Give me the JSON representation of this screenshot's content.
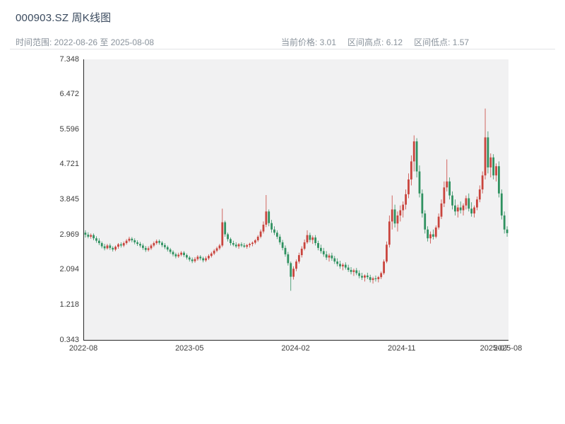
{
  "header": {
    "title": "000903.SZ 周K线图",
    "time_range": "时间范围: 2022-08-26 至 2025-08-08",
    "current_price_label": "当前价格: 3.01",
    "range_high_label": "区间高点: 6.12",
    "range_low_label": "区间低点: 1.57"
  },
  "chart_data": {
    "type": "candlestick",
    "title": "000903.SZ 周K线图",
    "interval": "weekly",
    "start_date": "2022-08-26",
    "end_date": "2025-08-08",
    "current_price": 3.01,
    "range_high": 6.12,
    "range_low": 1.57,
    "up_color": "#c9443d",
    "down_color": "#2f9160",
    "plot_bg": "#f1f1f2",
    "ylim": [
      0.343,
      7.348
    ],
    "yticks": [
      7.348,
      6.472,
      5.596,
      4.721,
      3.845,
      2.969,
      2.094,
      1.218,
      0.343
    ],
    "xticks": [
      {
        "label": "2022-08",
        "pos": 0.0
      },
      {
        "label": "2023-05",
        "pos": 0.25
      },
      {
        "label": "2024-02",
        "pos": 0.5
      },
      {
        "label": "2024-11",
        "pos": 0.75
      },
      {
        "label": "2025-07",
        "pos": 0.968
      },
      {
        "label": "2025-08",
        "pos": 1.0
      }
    ],
    "ohlc": [
      [
        3.02,
        3.08,
        2.9,
        2.97
      ],
      [
        2.97,
        3.03,
        2.88,
        2.92
      ],
      [
        2.92,
        3.0,
        2.87,
        2.96
      ],
      [
        2.96,
        3.0,
        2.83,
        2.88
      ],
      [
        2.88,
        2.93,
        2.77,
        2.82
      ],
      [
        2.82,
        2.88,
        2.71,
        2.76
      ],
      [
        2.76,
        2.8,
        2.63,
        2.68
      ],
      [
        2.68,
        2.74,
        2.58,
        2.63
      ],
      [
        2.63,
        2.74,
        2.6,
        2.7
      ],
      [
        2.7,
        2.75,
        2.59,
        2.64
      ],
      [
        2.64,
        2.68,
        2.55,
        2.6
      ],
      [
        2.6,
        2.7,
        2.56,
        2.67
      ],
      [
        2.67,
        2.76,
        2.62,
        2.73
      ],
      [
        2.73,
        2.78,
        2.65,
        2.7
      ],
      [
        2.7,
        2.8,
        2.66,
        2.76
      ],
      [
        2.76,
        2.86,
        2.72,
        2.82
      ],
      [
        2.82,
        2.92,
        2.78,
        2.87
      ],
      [
        2.87,
        2.91,
        2.78,
        2.83
      ],
      [
        2.83,
        2.88,
        2.73,
        2.78
      ],
      [
        2.78,
        2.83,
        2.69,
        2.74
      ],
      [
        2.74,
        2.79,
        2.65,
        2.7
      ],
      [
        2.7,
        2.75,
        2.59,
        2.64
      ],
      [
        2.64,
        2.69,
        2.54,
        2.59
      ],
      [
        2.59,
        2.68,
        2.55,
        2.63
      ],
      [
        2.63,
        2.74,
        2.59,
        2.7
      ],
      [
        2.7,
        2.8,
        2.66,
        2.76
      ],
      [
        2.76,
        2.85,
        2.72,
        2.81
      ],
      [
        2.81,
        2.85,
        2.72,
        2.77
      ],
      [
        2.77,
        2.81,
        2.66,
        2.71
      ],
      [
        2.71,
        2.76,
        2.61,
        2.66
      ],
      [
        2.66,
        2.7,
        2.55,
        2.6
      ],
      [
        2.6,
        2.64,
        2.49,
        2.54
      ],
      [
        2.54,
        2.58,
        2.43,
        2.48
      ],
      [
        2.48,
        2.52,
        2.38,
        2.43
      ],
      [
        2.43,
        2.52,
        2.39,
        2.47
      ],
      [
        2.47,
        2.56,
        2.43,
        2.52
      ],
      [
        2.52,
        2.56,
        2.41,
        2.46
      ],
      [
        2.46,
        2.5,
        2.35,
        2.4
      ],
      [
        2.4,
        2.44,
        2.3,
        2.35
      ],
      [
        2.35,
        2.4,
        2.26,
        2.31
      ],
      [
        2.31,
        2.41,
        2.27,
        2.36
      ],
      [
        2.36,
        2.46,
        2.32,
        2.42
      ],
      [
        2.42,
        2.46,
        2.33,
        2.38
      ],
      [
        2.38,
        2.42,
        2.28,
        2.33
      ],
      [
        2.33,
        2.43,
        2.29,
        2.38
      ],
      [
        2.38,
        2.48,
        2.34,
        2.44
      ],
      [
        2.44,
        2.54,
        2.4,
        2.5
      ],
      [
        2.5,
        2.61,
        2.46,
        2.57
      ],
      [
        2.57,
        2.67,
        2.53,
        2.63
      ],
      [
        2.63,
        2.74,
        2.59,
        2.7
      ],
      [
        2.7,
        3.62,
        2.66,
        3.28
      ],
      [
        3.28,
        3.32,
        2.92,
        2.98
      ],
      [
        2.98,
        3.02,
        2.8,
        2.86
      ],
      [
        2.86,
        2.9,
        2.7,
        2.76
      ],
      [
        2.76,
        2.82,
        2.68,
        2.72
      ],
      [
        2.72,
        2.78,
        2.64,
        2.68
      ],
      [
        2.68,
        2.76,
        2.62,
        2.73
      ],
      [
        2.73,
        2.78,
        2.66,
        2.7
      ],
      [
        2.7,
        2.76,
        2.64,
        2.67
      ],
      [
        2.67,
        2.74,
        2.62,
        2.71
      ],
      [
        2.71,
        2.77,
        2.65,
        2.74
      ],
      [
        2.74,
        2.8,
        2.68,
        2.77
      ],
      [
        2.77,
        2.86,
        2.73,
        2.83
      ],
      [
        2.83,
        2.96,
        2.79,
        2.92
      ],
      [
        2.92,
        3.1,
        2.88,
        3.05
      ],
      [
        3.05,
        3.3,
        3.0,
        3.22
      ],
      [
        3.22,
        3.96,
        3.16,
        3.55
      ],
      [
        3.55,
        3.6,
        3.18,
        3.26
      ],
      [
        3.26,
        3.34,
        3.02,
        3.1
      ],
      [
        3.1,
        3.18,
        2.96,
        3.02
      ],
      [
        3.02,
        3.08,
        2.86,
        2.92
      ],
      [
        2.92,
        2.98,
        2.72,
        2.78
      ],
      [
        2.78,
        2.84,
        2.58,
        2.64
      ],
      [
        2.64,
        2.7,
        2.42,
        2.48
      ],
      [
        2.48,
        2.54,
        2.2,
        2.26
      ],
      [
        2.26,
        2.3,
        1.57,
        1.92
      ],
      [
        1.92,
        2.18,
        1.85,
        2.12
      ],
      [
        2.12,
        2.35,
        2.06,
        2.3
      ],
      [
        2.3,
        2.52,
        2.25,
        2.46
      ],
      [
        2.46,
        2.68,
        2.4,
        2.62
      ],
      [
        2.62,
        2.85,
        2.58,
        2.78
      ],
      [
        2.78,
        3.08,
        2.74,
        2.96
      ],
      [
        2.96,
        3.02,
        2.78,
        2.84
      ],
      [
        2.84,
        2.95,
        2.74,
        2.9
      ],
      [
        2.9,
        2.96,
        2.7,
        2.76
      ],
      [
        2.76,
        2.82,
        2.58,
        2.64
      ],
      [
        2.64,
        2.72,
        2.5,
        2.56
      ],
      [
        2.56,
        2.64,
        2.42,
        2.48
      ],
      [
        2.48,
        2.56,
        2.34,
        2.4
      ],
      [
        2.4,
        2.5,
        2.3,
        2.45
      ],
      [
        2.45,
        2.52,
        2.32,
        2.38
      ],
      [
        2.38,
        2.44,
        2.24,
        2.3
      ],
      [
        2.3,
        2.38,
        2.18,
        2.24
      ],
      [
        2.24,
        2.32,
        2.12,
        2.18
      ],
      [
        2.18,
        2.26,
        2.08,
        2.22
      ],
      [
        2.22,
        2.28,
        2.1,
        2.15
      ],
      [
        2.15,
        2.22,
        2.04,
        2.09
      ],
      [
        2.09,
        2.16,
        1.98,
        2.04
      ],
      [
        2.04,
        2.12,
        1.94,
        2.08
      ],
      [
        2.08,
        2.14,
        1.96,
        2.01
      ],
      [
        2.01,
        2.08,
        1.88,
        1.94
      ],
      [
        1.94,
        2.02,
        1.84,
        1.9
      ],
      [
        1.9,
        1.98,
        1.8,
        1.95
      ],
      [
        1.95,
        2.02,
        1.86,
        1.91
      ],
      [
        1.91,
        1.97,
        1.78,
        1.84
      ],
      [
        1.84,
        1.92,
        1.75,
        1.88
      ],
      [
        1.88,
        1.95,
        1.8,
        1.86
      ],
      [
        1.86,
        1.94,
        1.78,
        1.91
      ],
      [
        1.91,
        2.05,
        1.86,
        2.01
      ],
      [
        2.01,
        2.35,
        1.97,
        2.3
      ],
      [
        2.3,
        2.8,
        2.26,
        2.72
      ],
      [
        2.72,
        3.45,
        2.65,
        3.3
      ],
      [
        3.3,
        3.95,
        3.1,
        3.6
      ],
      [
        3.6,
        3.72,
        3.15,
        3.25
      ],
      [
        3.25,
        3.55,
        3.05,
        3.45
      ],
      [
        3.45,
        3.7,
        3.3,
        3.58
      ],
      [
        3.58,
        3.8,
        3.4,
        3.72
      ],
      [
        3.72,
        4.1,
        3.6,
        3.98
      ],
      [
        3.98,
        4.5,
        3.88,
        4.35
      ],
      [
        4.35,
        4.95,
        4.2,
        4.8
      ],
      [
        4.8,
        5.45,
        4.55,
        5.3
      ],
      [
        5.3,
        5.38,
        4.4,
        4.55
      ],
      [
        4.55,
        4.7,
        3.9,
        4.0
      ],
      [
        4.0,
        4.1,
        3.4,
        3.5
      ],
      [
        3.5,
        3.58,
        3.0,
        3.1
      ],
      [
        3.1,
        3.18,
        2.8,
        2.88
      ],
      [
        2.88,
        3.05,
        2.75,
        2.98
      ],
      [
        2.98,
        3.1,
        2.85,
        2.92
      ],
      [
        2.92,
        3.2,
        2.88,
        3.15
      ],
      [
        3.15,
        3.5,
        3.1,
        3.42
      ],
      [
        3.42,
        3.85,
        3.36,
        3.75
      ],
      [
        3.75,
        4.3,
        3.66,
        4.15
      ],
      [
        4.15,
        4.85,
        4.05,
        4.3
      ],
      [
        4.3,
        4.4,
        3.85,
        3.95
      ],
      [
        3.95,
        4.05,
        3.6,
        3.7
      ],
      [
        3.7,
        3.85,
        3.45,
        3.55
      ],
      [
        3.55,
        3.72,
        3.4,
        3.65
      ],
      [
        3.65,
        3.8,
        3.5,
        3.58
      ],
      [
        3.58,
        3.75,
        3.45,
        3.7
      ],
      [
        3.7,
        3.95,
        3.6,
        3.88
      ],
      [
        3.88,
        4.0,
        3.55,
        3.62
      ],
      [
        3.62,
        3.78,
        3.42,
        3.5
      ],
      [
        3.5,
        3.7,
        3.4,
        3.65
      ],
      [
        3.65,
        3.92,
        3.58,
        3.85
      ],
      [
        3.85,
        4.2,
        3.78,
        4.1
      ],
      [
        4.1,
        4.55,
        4.0,
        4.45
      ],
      [
        4.45,
        6.12,
        4.35,
        5.4
      ],
      [
        5.4,
        5.55,
        4.5,
        4.65
      ],
      [
        4.65,
        5.0,
        4.4,
        4.9
      ],
      [
        4.9,
        4.98,
        4.35,
        4.45
      ],
      [
        4.45,
        4.75,
        4.3,
        4.68
      ],
      [
        4.68,
        4.8,
        3.9,
        4.0
      ],
      [
        4.0,
        4.1,
        3.35,
        3.45
      ],
      [
        3.45,
        3.55,
        3.0,
        3.1
      ],
      [
        3.1,
        3.18,
        2.92,
        3.01
      ]
    ]
  }
}
